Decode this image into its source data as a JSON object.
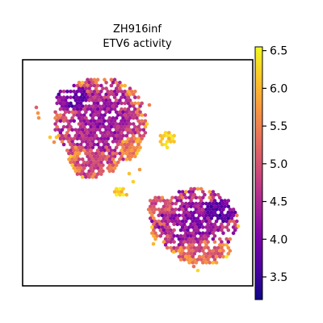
{
  "chart_data": {
    "type": "heatmap",
    "title": "ZH916inf",
    "subtitle": "ETV6 activity",
    "xlabel": "",
    "ylabel": "",
    "colorbar": {
      "colormap": "plasma",
      "range": [
        3.2,
        6.55
      ],
      "ticks": [
        3.5,
        4.0,
        4.5,
        5.0,
        5.5,
        6.0,
        6.5
      ],
      "tick_labels": [
        "3.5",
        "4.0",
        "4.5",
        "5.0",
        "5.5",
        "6.0",
        "6.5"
      ]
    },
    "grid": false,
    "legend": "colorbar-right"
  }
}
